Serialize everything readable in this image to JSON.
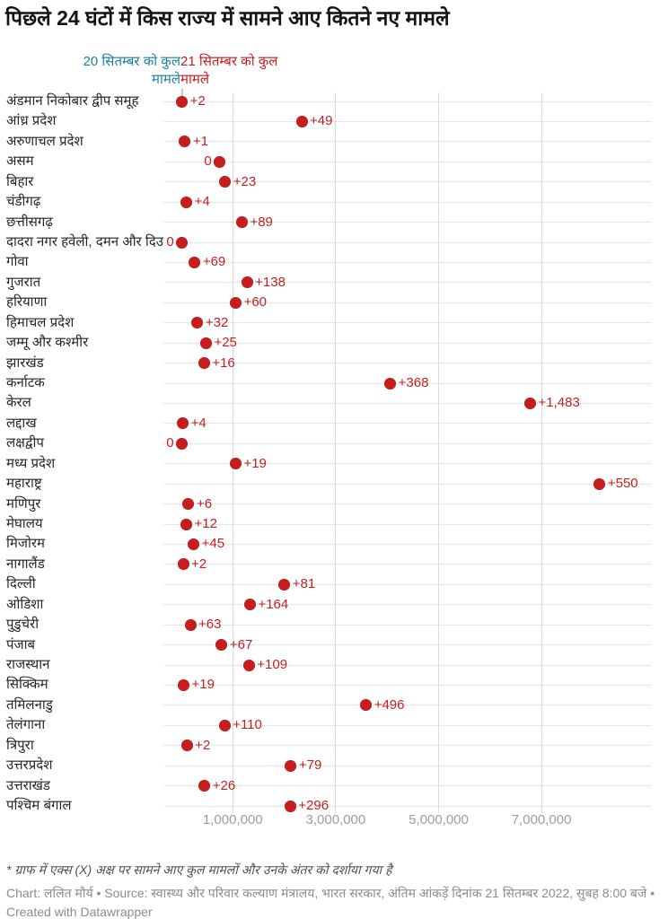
{
  "title": "पिछले 24 घंटों में किस राज्य में सामने आए कितने नए मामले",
  "legend": {
    "series": [
      {
        "line1": "20 सितम्बर को कुल",
        "line2": "मामले",
        "color": "#1d81a2"
      },
      {
        "line1": "21 सितम्बर को कुल",
        "line2": "मामले",
        "color": "#c71e1d"
      }
    ]
  },
  "footer": {
    "footnote": "* ग्राफ में एक्स (X) अक्ष पर सामने आए कुल मामलों और उनके अंतर को दर्शाया गया है",
    "attribution": "Chart: ललित मौर्य • Source: स्वास्थ्य और परिवार कल्याण मंत्रालय, भारत सरकार, अंतिम आंकड़ें दिनांक 21 सितम्बर 2022, सुबह 8:00 बजे • Created with Datawrapper"
  },
  "chart_data": {
    "type": "scatter",
    "title": "पिछले 24 घंटों में किस राज्य में सामने आए कितने नए मामले",
    "legend_position": "top",
    "grid": true,
    "x_axis": {
      "range": [
        0,
        9300000
      ],
      "ticks": [
        1000000,
        3000000,
        5000000,
        7000000
      ],
      "tick_labels": [
        "1,000,000",
        "3,000,000",
        "5,000,000",
        "7,000,000"
      ]
    },
    "series": [
      {
        "name": "20 सितम्बर को कुल मामले",
        "color": "#1d81a2"
      },
      {
        "name": "21 सितम्बर को कुल मामले",
        "color": "#c71e1d"
      }
    ],
    "rows": [
      {
        "state": "अंडमान निकोबार द्वीप समूह",
        "total_approx": 10700,
        "new_cases": 2,
        "delta_label": "+2",
        "delta_label_side": "right"
      },
      {
        "state": "आंध्र प्रदेश",
        "total_approx": 2339000,
        "new_cases": 49,
        "delta_label": "+49",
        "delta_label_side": "right"
      },
      {
        "state": "अरुणाचल प्रदेश",
        "total_approx": 66900,
        "new_cases": 1,
        "delta_label": "+1",
        "delta_label_side": "right"
      },
      {
        "state": "असम",
        "total_approx": 746000,
        "new_cases": 0,
        "delta_label": "0",
        "delta_label_side": "left"
      },
      {
        "state": "बिहार",
        "total_approx": 851000,
        "new_cases": 23,
        "delta_label": "+23",
        "delta_label_side": "right"
      },
      {
        "state": "चंडीगढ़",
        "total_approx": 99200,
        "new_cases": 4,
        "delta_label": "+4",
        "delta_label_side": "right"
      },
      {
        "state": "छत्तीसगढ़",
        "total_approx": 1177000,
        "new_cases": 89,
        "delta_label": "+89",
        "delta_label_side": "right"
      },
      {
        "state": "दादरा नगर हवेली, दमन और दिउ",
        "total_approx": 11600,
        "new_cases": 0,
        "delta_label": "0",
        "delta_label_side": "left"
      },
      {
        "state": "गोवा",
        "total_approx": 259000,
        "new_cases": 69,
        "delta_label": "+69",
        "delta_label_side": "right"
      },
      {
        "state": "गुजरात",
        "total_approx": 1277000,
        "new_cases": 138,
        "delta_label": "+138",
        "delta_label_side": "right"
      },
      {
        "state": "हरियाणा",
        "total_approx": 1057000,
        "new_cases": 60,
        "delta_label": "+60",
        "delta_label_side": "right"
      },
      {
        "state": "हिमाचल प्रदेश",
        "total_approx": 313000,
        "new_cases": 32,
        "delta_label": "+32",
        "delta_label_side": "right"
      },
      {
        "state": "जम्मू और कश्मीर",
        "total_approx": 479000,
        "new_cases": 25,
        "delta_label": "+25",
        "delta_label_side": "right"
      },
      {
        "state": "झारखंड",
        "total_approx": 442000,
        "new_cases": 16,
        "delta_label": "+16",
        "delta_label_side": "right"
      },
      {
        "state": "कर्नाटक",
        "total_approx": 4060000,
        "new_cases": 368,
        "delta_label": "+368",
        "delta_label_side": "right"
      },
      {
        "state": "केरल",
        "total_approx": 6780000,
        "new_cases": 1483,
        "delta_label": "+1,483",
        "delta_label_side": "right"
      },
      {
        "state": "लद्दाख",
        "total_approx": 29400,
        "new_cases": 4,
        "delta_label": "+4",
        "delta_label_side": "right"
      },
      {
        "state": "लक्षद्वीप",
        "total_approx": 11400,
        "new_cases": 0,
        "delta_label": "0",
        "delta_label_side": "left"
      },
      {
        "state": "मध्य प्रदेश",
        "total_approx": 1055000,
        "new_cases": 19,
        "delta_label": "+19",
        "delta_label_side": "right"
      },
      {
        "state": "महाराष्ट्र",
        "total_approx": 8130000,
        "new_cases": 550,
        "delta_label": "+550",
        "delta_label_side": "right"
      },
      {
        "state": "मणिपुर",
        "total_approx": 139000,
        "new_cases": 6,
        "delta_label": "+6",
        "delta_label_side": "right"
      },
      {
        "state": "मेघालय",
        "total_approx": 96000,
        "new_cases": 12,
        "delta_label": "+12",
        "delta_label_side": "right"
      },
      {
        "state": "मिजोरम",
        "total_approx": 238000,
        "new_cases": 45,
        "delta_label": "+45",
        "delta_label_side": "right"
      },
      {
        "state": "नागालैंड",
        "total_approx": 35900,
        "new_cases": 2,
        "delta_label": "+2",
        "delta_label_side": "right"
      },
      {
        "state": "दिल्ली",
        "total_approx": 2003000,
        "new_cases": 81,
        "delta_label": "+81",
        "delta_label_side": "right"
      },
      {
        "state": "ओडिशा",
        "total_approx": 1334000,
        "new_cases": 164,
        "delta_label": "+164",
        "delta_label_side": "right"
      },
      {
        "state": "पुडुचेरी",
        "total_approx": 175000,
        "new_cases": 63,
        "delta_label": "+63",
        "delta_label_side": "right"
      },
      {
        "state": "पंजाब",
        "total_approx": 784000,
        "new_cases": 67,
        "delta_label": "+67",
        "delta_label_side": "right"
      },
      {
        "state": "राजस्थान",
        "total_approx": 1314000,
        "new_cases": 109,
        "delta_label": "+109",
        "delta_label_side": "right"
      },
      {
        "state": "सिक्किम",
        "total_approx": 44000,
        "new_cases": 19,
        "delta_label": "+19",
        "delta_label_side": "right"
      },
      {
        "state": "तमिलनाडु",
        "total_approx": 3590000,
        "new_cases": 496,
        "delta_label": "+496",
        "delta_label_side": "right"
      },
      {
        "state": "तेलंगाना",
        "total_approx": 841000,
        "new_cases": 110,
        "delta_label": "+110",
        "delta_label_side": "right"
      },
      {
        "state": "त्रिपुरा",
        "total_approx": 107000,
        "new_cases": 2,
        "delta_label": "+2",
        "delta_label_side": "right"
      },
      {
        "state": "उत्तरप्रदेश",
        "total_approx": 2127000,
        "new_cases": 79,
        "delta_label": "+79",
        "delta_label_side": "right"
      },
      {
        "state": "उत्तराखंड",
        "total_approx": 449000,
        "new_cases": 26,
        "delta_label": "+26",
        "delta_label_side": "right"
      },
      {
        "state": "पश्चिम बंगाल",
        "total_approx": 2117000,
        "new_cases": 296,
        "delta_label": "+296",
        "delta_label_side": "right"
      }
    ]
  }
}
